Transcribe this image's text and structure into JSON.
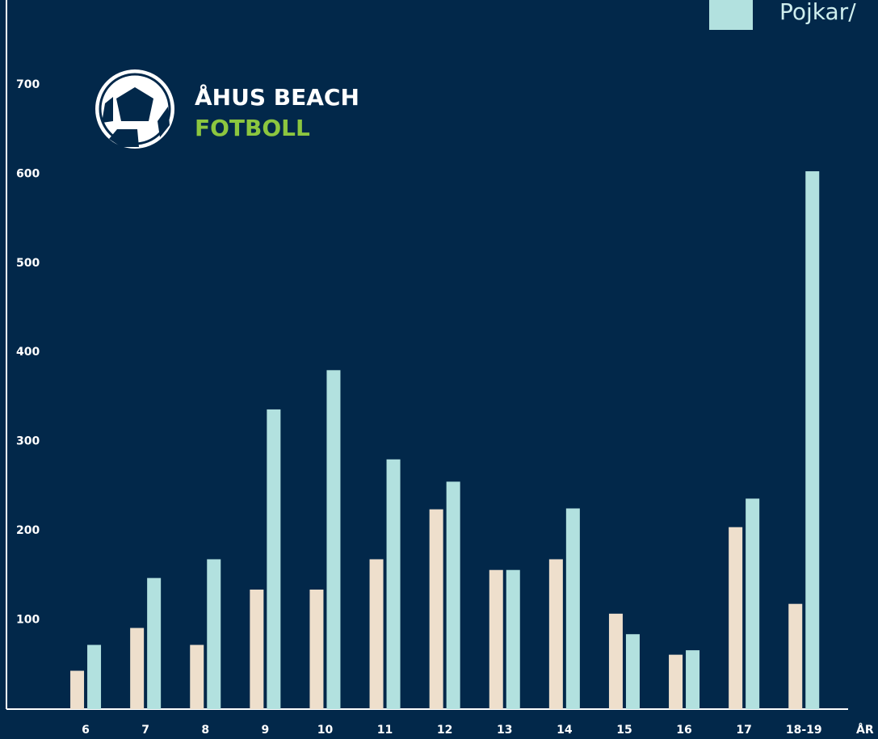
{
  "chart_data": {
    "type": "bar",
    "logo": {
      "line1": "ÅHUS BEACH",
      "line2": "FOTBOLL"
    },
    "x_label": "ÅR",
    "categories": [
      "6",
      "7",
      "8",
      "9",
      "10",
      "11",
      "12",
      "13",
      "14",
      "15",
      "16",
      "17",
      "18-19"
    ],
    "series": [
      {
        "color": "#eedfcc",
        "values": [
          43,
          91,
          72,
          134,
          134,
          168,
          224,
          156,
          168,
          107,
          61,
          204,
          118
        ]
      },
      {
        "name": "Pojkar/",
        "color": "#b2e1df",
        "values": [
          72,
          147,
          168,
          336,
          380,
          280,
          255,
          156,
          225,
          84,
          66,
          236,
          603
        ]
      }
    ],
    "ylim": [
      0,
      795
    ],
    "yticks": [
      100,
      200,
      300,
      400,
      500,
      600,
      700
    ]
  }
}
